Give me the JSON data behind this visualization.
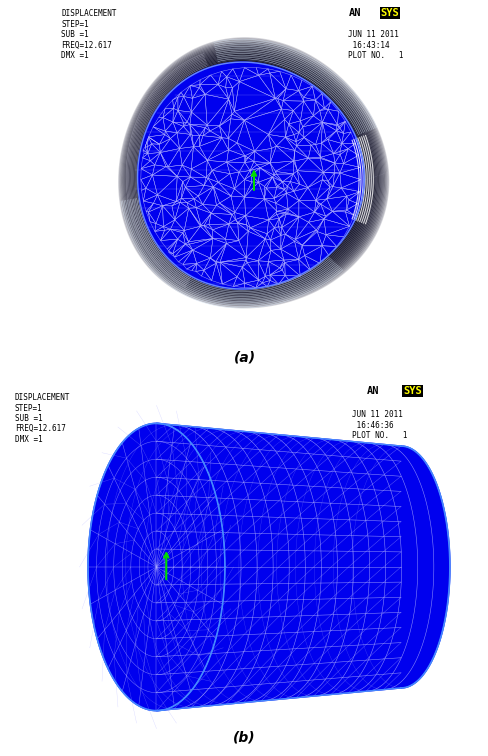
{
  "fig_width": 4.89,
  "fig_height": 7.56,
  "dpi": 100,
  "bg_color": "#ffffff",
  "label_a": "(a)",
  "label_b": "(b)",
  "top_left_text_a": "DISPLACEMENT\nSTEP=1\nSUB =1\nFREQ=12.617\nDMX =1",
  "top_right_text_a": "JUN 11 2011\n 16:43:14\nPLOT NO.   1",
  "top_left_text_b": "DISPLACEMENT\nSTEP=1\nSUB =1\nFREQ=12.617\nDMX =1",
  "top_right_text_b": "JUN 11 2011\n 16:46:36\nPLOT NO.   1",
  "mesh_color": "#0000ee",
  "grid_color": "#aaaaff",
  "dark_color": "#111133",
  "ansys_yellow": "#ffff00",
  "green_marker": "#00dd00"
}
